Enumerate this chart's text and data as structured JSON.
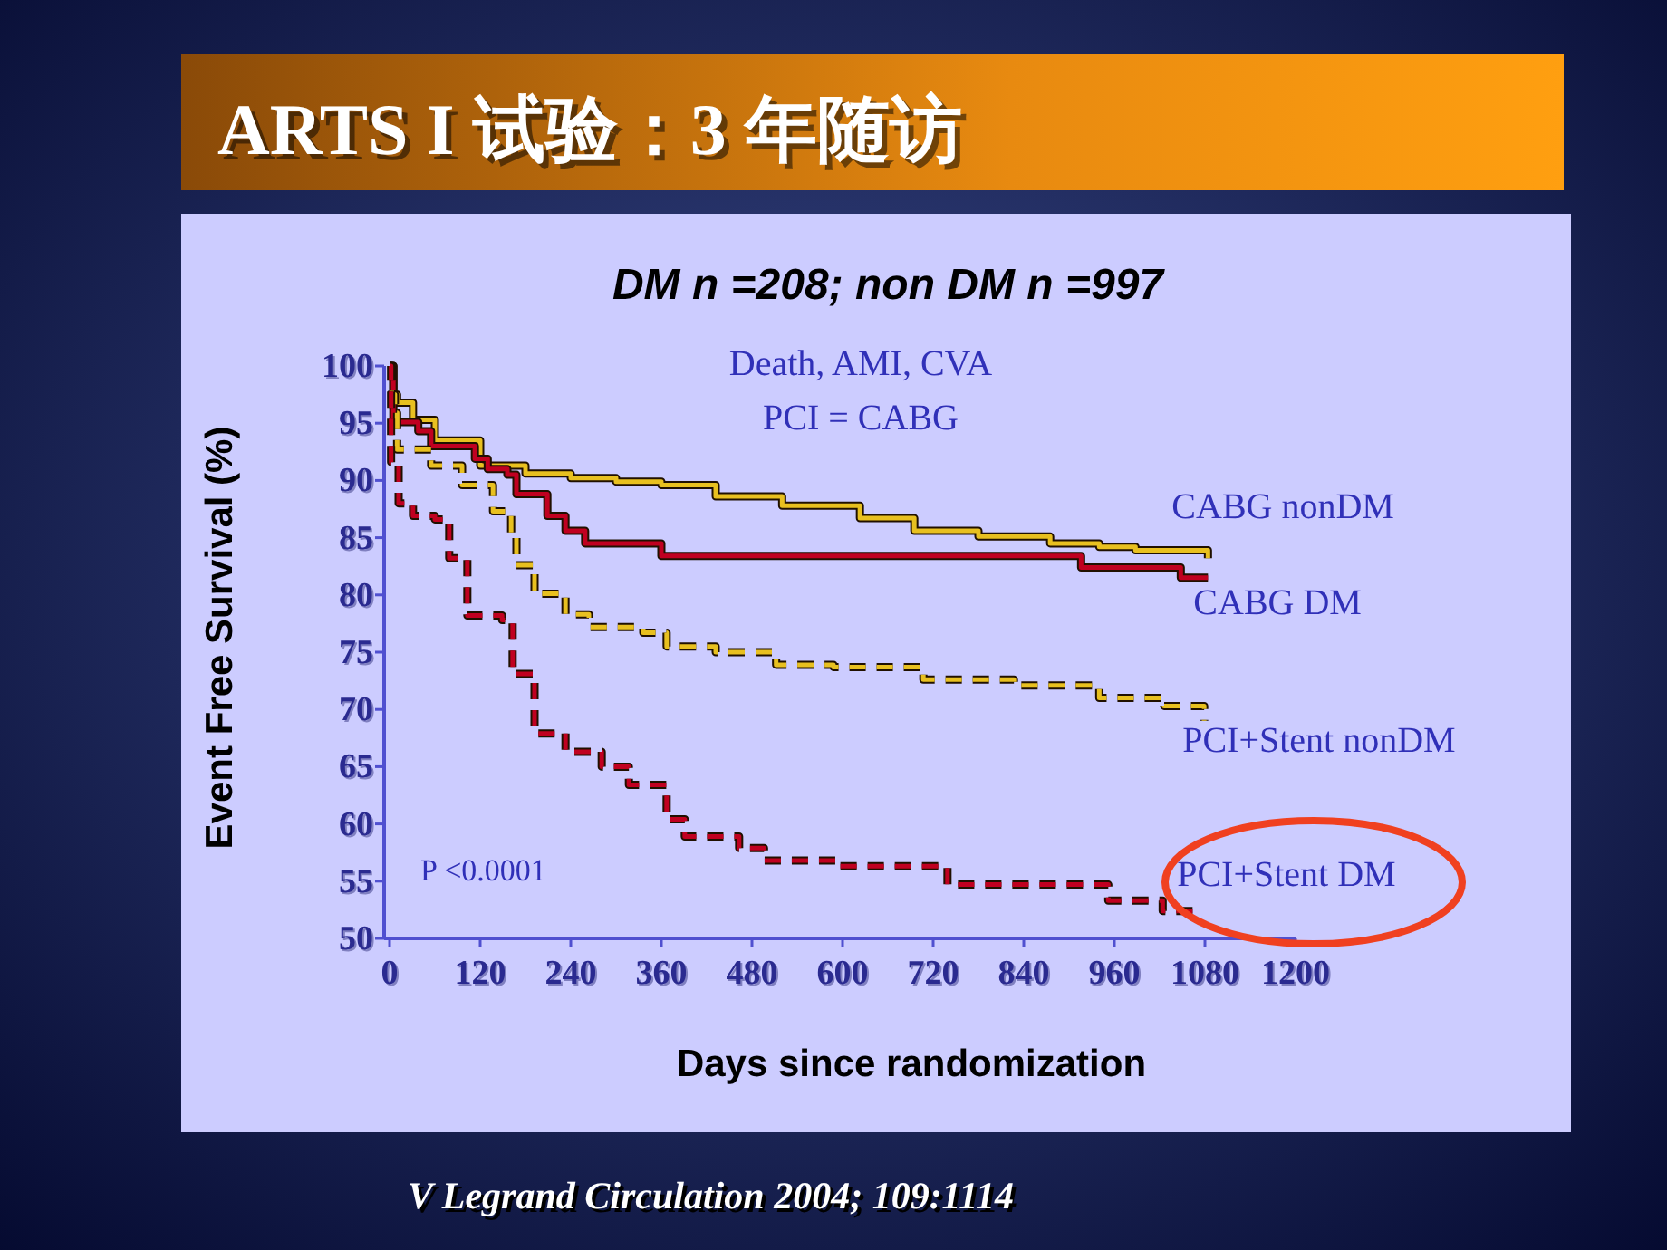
{
  "chart_data": {
    "type": "step",
    "title": "ARTS I 试验：3 年随访",
    "subtitle": "DM n =208;   non DM  n =997",
    "xlabel": "Days since randomization",
    "ylabel": "Event Free Survival (%)",
    "annotations": [
      "Death, AMI, CVA",
      "PCI = CABG",
      "P <0.0001",
      "V Legrand   Circulation 2004; 109:1114"
    ],
    "xlim": [
      0,
      1200
    ],
    "ylim": [
      50,
      100
    ],
    "xticks": [
      0,
      120,
      240,
      360,
      480,
      600,
      720,
      840,
      960,
      1080,
      1200
    ],
    "yticks": [
      50,
      55,
      60,
      65,
      70,
      75,
      80,
      85,
      90,
      95,
      100
    ],
    "grid": false,
    "legend": false,
    "series": [
      {
        "name": "CABG nonDM",
        "color": "#e8c020",
        "line_style": "solid",
        "x": [
          0,
          5,
          10,
          31,
          60,
          120,
          180,
          240,
          300,
          360,
          432,
          520,
          623,
          695,
          780,
          875,
          940,
          988,
          1084
        ],
        "values": [
          100,
          97.5,
          96.8,
          95.3,
          93.5,
          91.3,
          90.6,
          90.2,
          89.9,
          89.6,
          88.6,
          87.8,
          86.7,
          85.6,
          85.1,
          84.5,
          84.2,
          83.9,
          83.2
        ]
      },
      {
        "name": "CABG DM",
        "color": "#c00020",
        "line_style": "solid",
        "x": [
          0,
          5,
          38,
          55,
          113,
          130,
          156,
          168,
          209,
          233,
          259,
          360,
          916,
          1048,
          1084
        ],
        "values": [
          100,
          95.1,
          94.3,
          93.0,
          91.9,
          91.0,
          90.5,
          88.8,
          86.9,
          85.6,
          84.5,
          83.4,
          82.4,
          81.5,
          81.5
        ]
      },
      {
        "name": "PCI+Stent nonDM",
        "color": "#e8c020",
        "line_style": "dashed",
        "x": [
          0,
          3,
          7,
          10,
          55,
          96,
          137,
          161,
          168,
          192,
          233,
          264,
          336,
          367,
          432,
          512,
          588,
          707,
          827,
          940,
          1026,
          1079
        ],
        "values": [
          100,
          97.5,
          95.9,
          92.7,
          91.3,
          89.6,
          87.3,
          85.3,
          82.6,
          80.1,
          78.3,
          77.2,
          76.7,
          75.5,
          75.0,
          73.9,
          73.7,
          72.6,
          72.1,
          71.0,
          70.3,
          69.0
        ]
      },
      {
        "name": "PCI+Stent DM",
        "color": "#c00020",
        "line_style": "dashed",
        "x": [
          0,
          2,
          12,
          31,
          60,
          79,
          103,
          149,
          163,
          192,
          233,
          281,
          317,
          367,
          391,
          463,
          496,
          592,
          739,
          952,
          1024,
          1067
        ],
        "values": [
          100,
          91.6,
          88.0,
          86.9,
          86.6,
          83.2,
          78.2,
          77.8,
          73.1,
          67.9,
          66.3,
          65.0,
          63.4,
          60.4,
          58.9,
          57.9,
          56.8,
          56.3,
          54.7,
          53.3,
          52.4,
          52.4
        ]
      }
    ]
  }
}
